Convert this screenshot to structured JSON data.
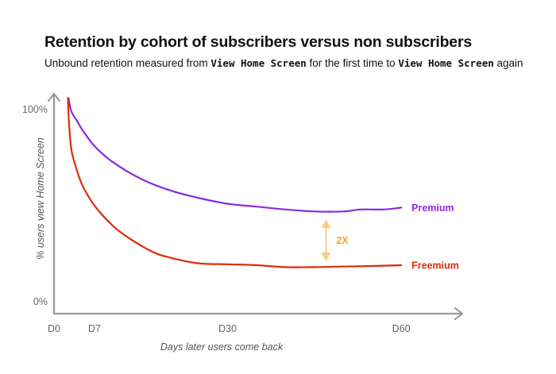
{
  "header": {
    "title": "Retention by cohort of subscribers versus non subscribers",
    "subtitle_parts": [
      {
        "text": "Unbound retention measured from ",
        "code": false
      },
      {
        "text": "View Home Screen",
        "code": true
      },
      {
        "text": " for the first time to ",
        "code": false
      },
      {
        "text": "View Home Screen",
        "code": true
      },
      {
        "text": " again",
        "code": false
      }
    ]
  },
  "colors": {
    "premium": "#8a2be2",
    "freemium": "#dd2c0a",
    "annotation": "#f5a623",
    "axis": "#9a9a9a"
  },
  "chart_data": {
    "type": "line",
    "xlabel": "Days later users come back",
    "ylabel": "% users view Home Screen",
    "xlim": [
      0,
      70
    ],
    "ylim": [
      0,
      100
    ],
    "x_ticks": [
      {
        "value": 0,
        "label": "D0"
      },
      {
        "value": 7,
        "label": "D7"
      },
      {
        "value": 30,
        "label": "D30"
      },
      {
        "value": 60,
        "label": "D60"
      }
    ],
    "y_ticks": [
      {
        "value": 0,
        "label": "0%"
      },
      {
        "value": 100,
        "label": "100%"
      }
    ],
    "series": [
      {
        "name": "Premium",
        "color_key": "premium",
        "x": [
          2.5,
          3,
          4,
          5,
          7,
          10,
          15,
          20,
          25,
          30,
          35,
          40,
          45,
          50,
          53,
          57,
          60
        ],
        "y": [
          106,
          99,
          94,
          89,
          81,
          73,
          64,
          58,
          54,
          51,
          49.5,
          48,
          47,
          47,
          48,
          48,
          49
        ]
      },
      {
        "name": "Freemium",
        "color_key": "freemium",
        "x": [
          2.4,
          2.6,
          3,
          4,
          5,
          7,
          10,
          13,
          17,
          20,
          25,
          30,
          35,
          40,
          45,
          50,
          55,
          60
        ],
        "y": [
          106,
          93,
          79,
          68,
          60,
          50,
          40,
          33,
          26,
          23,
          20,
          19.5,
          19,
          18,
          18,
          18.3,
          18.6,
          19
        ]
      }
    ],
    "annotation": {
      "label": "2X",
      "x": 47,
      "y_from": 21,
      "y_to": 43
    }
  }
}
